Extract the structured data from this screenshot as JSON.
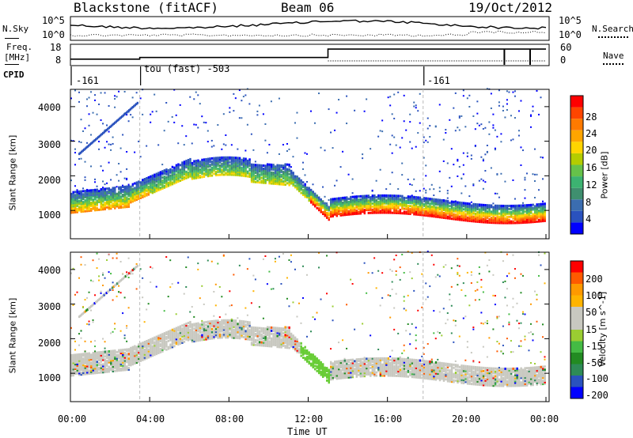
{
  "header": {
    "radar": "Blackstone (fitACF)",
    "beam": "Beam 06",
    "date": "19/Oct/2012"
  },
  "strip_labels": {
    "nsky": "N.Sky",
    "nsearch": "N.Search",
    "freq_line1": "Freq.",
    "freq_line2": "[MHz]",
    "nave": "Nave",
    "cpid": "CPID",
    "nsky_ticks": [
      "10^5",
      "10^0"
    ],
    "nsearch_ticks": [
      "10^5",
      "10^0"
    ],
    "freq_ticks": [
      "18",
      "8"
    ],
    "nave_ticks": [
      "60",
      "0"
    ]
  },
  "cpid_segments": [
    {
      "start_hour": 0.0,
      "text": "-161"
    },
    {
      "start_hour": 3.5,
      "text": "tou (fast) -503"
    },
    {
      "start_hour": 17.8,
      "text": "-161"
    }
  ],
  "colors": {
    "power": [
      "#0000ff",
      "#2a52be",
      "#3b6db0",
      "#3f8f6f",
      "#3cb371",
      "#66c24a",
      "#b4cc00",
      "#ffd400",
      "#ffa500",
      "#ff7a00",
      "#ff4500",
      "#ff0000"
    ],
    "velocity": [
      "#ff0000",
      "#ff5a00",
      "#ff9900",
      "#ffb400",
      "#c8c8c0",
      "#c8c8c0",
      "#9acd32",
      "#44bb44",
      "#228b22",
      "#2e8b57",
      "#2a52be",
      "#0000ff"
    ]
  },
  "chart_data": [
    {
      "type": "heatmap",
      "panel": "power",
      "x_range_hours": [
        0,
        24
      ],
      "xticks": [
        "00:00",
        "04:00",
        "08:00",
        "12:00",
        "16:00",
        "20:00",
        "00:00"
      ],
      "ylabel": "Slant Range [km]",
      "ylim": [
        180,
        4500
      ],
      "yticks": [
        "1000",
        "2000",
        "3000",
        "4000"
      ],
      "colorbar_label": "Power [dB]",
      "colorbar_ticks": [
        "28",
        "24",
        "20",
        "16",
        "12",
        "8",
        "4"
      ],
      "colorbar_range": [
        0,
        30
      ]
    },
    {
      "type": "heatmap",
      "panel": "velocity",
      "x_range_hours": [
        0,
        24
      ],
      "xticks": [
        "00:00",
        "04:00",
        "08:00",
        "12:00",
        "16:00",
        "20:00",
        "00:00"
      ],
      "xlabel": "Time UT",
      "ylabel": "Slant Range [km]",
      "ylim": [
        180,
        4500
      ],
      "yticks": [
        "1000",
        "2000",
        "3000",
        "4000"
      ],
      "colorbar_label": "Velocity [m s^-1]",
      "colorbar_ticks": [
        "200",
        "100",
        "50",
        "15",
        "-15",
        "-50",
        "-100",
        "-200"
      ],
      "colorbar_range": [
        -250,
        250
      ]
    },
    {
      "type": "line",
      "panel": "frequency",
      "series": [
        {
          "name": "Freq. [MHz]",
          "x": [
            0,
            3.5,
            3.5,
            13,
            13,
            24
          ],
          "values": [
            10.5,
            10.5,
            11.5,
            11.5,
            16.5,
            16.5
          ]
        }
      ],
      "ylim": [
        8,
        18
      ]
    }
  ]
}
